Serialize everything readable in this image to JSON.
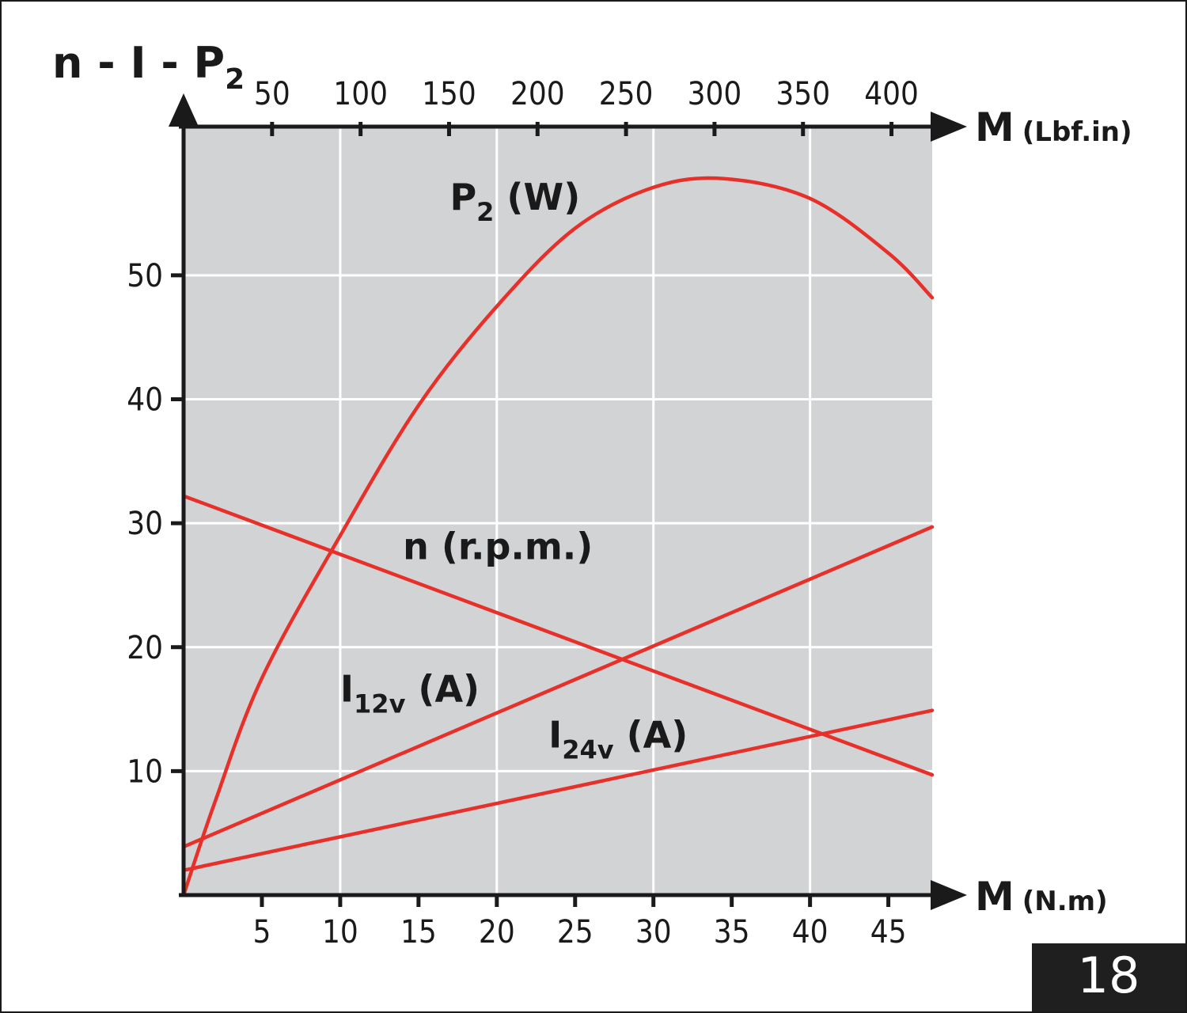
{
  "page_number": "18",
  "chart_data": {
    "type": "line",
    "ylabel_main": "n - I - P",
    "ylabel_sub": "2",
    "x_bottom": {
      "label": "M",
      "unit": "(N.m)",
      "ticks": [
        "5",
        "10",
        "15",
        "20",
        "25",
        "30",
        "35",
        "40",
        "45"
      ],
      "range": [
        0,
        47.8
      ]
    },
    "x_top": {
      "label": "M",
      "unit": "(Lbf.in)",
      "ticks": [
        "50",
        "100",
        "150",
        "200",
        "250",
        "300",
        "350",
        "400"
      ],
      "range": [
        0,
        423
      ]
    },
    "y": {
      "ticks": [
        "10",
        "20",
        "30",
        "40",
        "50"
      ],
      "range": [
        0,
        62
      ]
    },
    "grid": true,
    "colors": {
      "series": "#e8302a",
      "plot_bg": "#d2d3d5",
      "grid": "#ffffff",
      "axis": "#1a1a1a"
    },
    "series": [
      {
        "name": "P2 (W)",
        "label_main": "P",
        "label_sub": "2",
        "label_rest": " (W)",
        "x": [
          0,
          2,
          5,
          10,
          15,
          20,
          25,
          30,
          34.5,
          40,
          45,
          47.8
        ],
        "y": [
          0,
          7.5,
          17.5,
          29,
          39.5,
          47.5,
          53.8,
          57.1,
          57.8,
          56.2,
          51.8,
          48.2
        ]
      },
      {
        "name": "n (r.p.m.)",
        "label_main": "n (r.p.m.)",
        "label_sub": "",
        "label_rest": "",
        "x": [
          0,
          47.8
        ],
        "y": [
          32.2,
          9.7
        ]
      },
      {
        "name": "I12v (A)",
        "label_main": "I",
        "label_sub": "12v",
        "label_rest": " (A)",
        "x": [
          0,
          47.8
        ],
        "y": [
          3.9,
          29.7
        ]
      },
      {
        "name": "I24v (A)",
        "label_main": "I",
        "label_sub": "24v",
        "label_rest": " (A)",
        "x": [
          0,
          47.8
        ],
        "y": [
          2.0,
          14.9
        ]
      }
    ]
  }
}
